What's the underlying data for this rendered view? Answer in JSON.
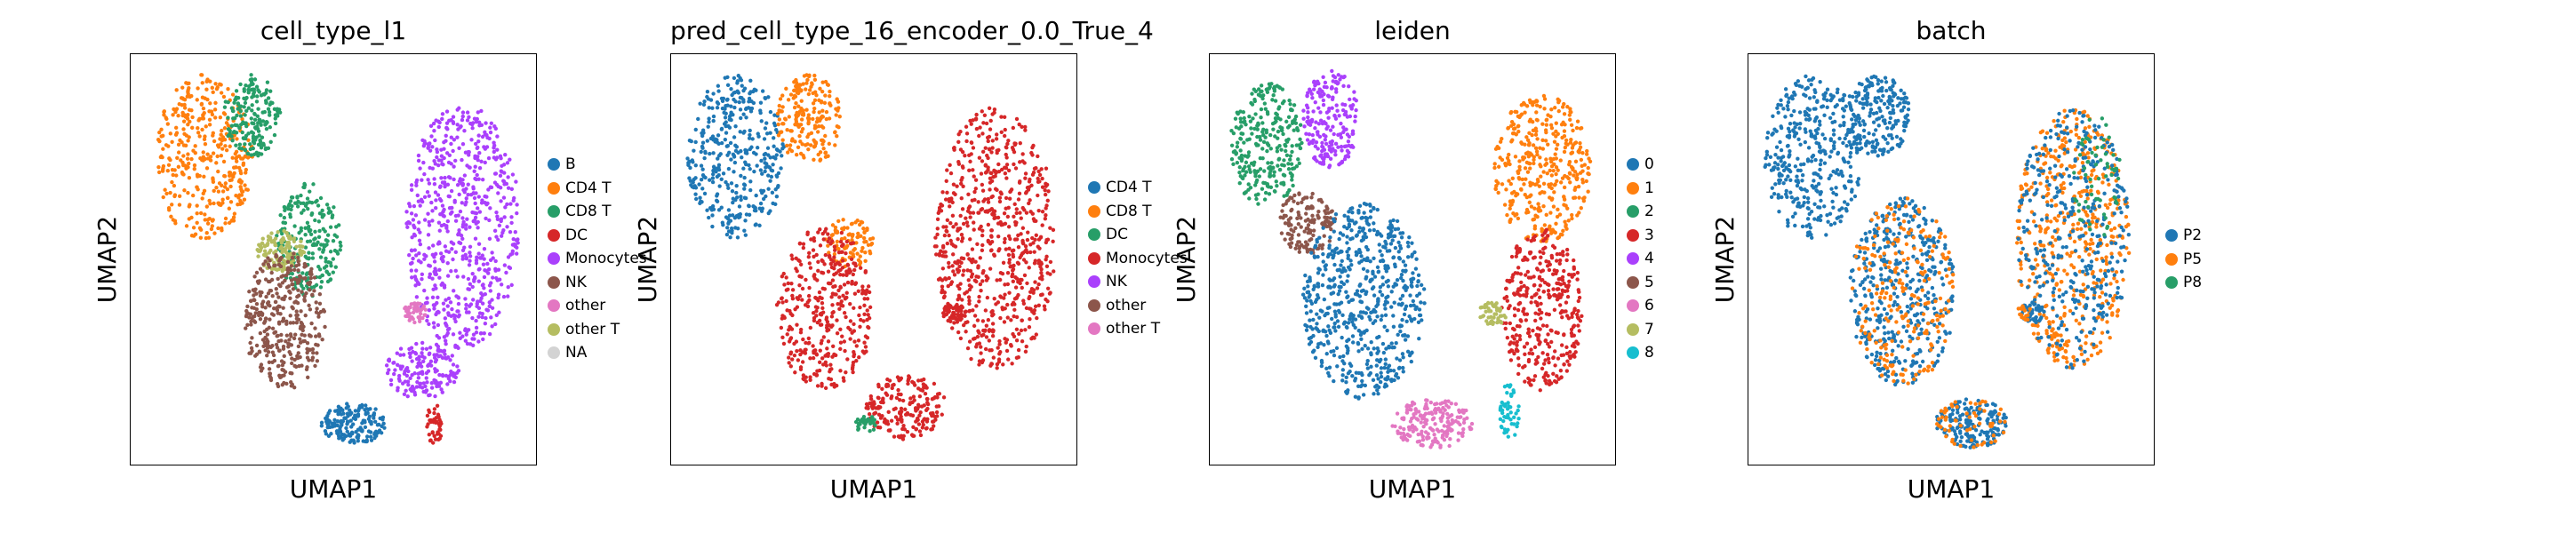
{
  "colors": {
    "blue": "#1f77b4",
    "orange": "#ff7f0e",
    "green": "#279e68",
    "red": "#d62728",
    "purple": "#aa40fc",
    "brown": "#8c564b",
    "pink": "#e377c2",
    "olive": "#b5bd61",
    "gray": "#d3d3d3",
    "cyan": "#17becf"
  },
  "chart_data": [
    {
      "type": "scatter",
      "title": "cell_type_l1",
      "xlabel": "UMAP1",
      "ylabel": "UMAP2",
      "grid": false,
      "legend": "right",
      "legend_entries": [
        {
          "label": "B",
          "color": "#1f77b4"
        },
        {
          "label": "CD4 T",
          "color": "#ff7f0e"
        },
        {
          "label": "CD8 T",
          "color": "#279e68"
        },
        {
          "label": "DC",
          "color": "#d62728"
        },
        {
          "label": "Monocytes",
          "color": "#aa40fc"
        },
        {
          "label": "NK",
          "color": "#8c564b"
        },
        {
          "label": "other",
          "color": "#e377c2"
        },
        {
          "label": "other T",
          "color": "#b5bd61"
        },
        {
          "label": "NA",
          "color": "#d3d3d3"
        }
      ],
      "regions": [
        {
          "color": "#ff7f0e",
          "cx": 0.18,
          "cy": 0.25,
          "rx": 0.12,
          "ry": 0.2,
          "n": 380
        },
        {
          "color": "#279e68",
          "cx": 0.3,
          "cy": 0.15,
          "rx": 0.07,
          "ry": 0.1,
          "n": 180
        },
        {
          "color": "#279e68",
          "cx": 0.44,
          "cy": 0.45,
          "rx": 0.08,
          "ry": 0.14,
          "n": 220
        },
        {
          "color": "#b5bd61",
          "cx": 0.37,
          "cy": 0.48,
          "rx": 0.06,
          "ry": 0.05,
          "n": 120
        },
        {
          "color": "#8c564b",
          "cx": 0.38,
          "cy": 0.65,
          "rx": 0.1,
          "ry": 0.17,
          "n": 360
        },
        {
          "color": "#aa40fc",
          "cx": 0.82,
          "cy": 0.42,
          "rx": 0.14,
          "ry": 0.3,
          "n": 650
        },
        {
          "color": "#aa40fc",
          "cx": 0.72,
          "cy": 0.77,
          "rx": 0.09,
          "ry": 0.07,
          "n": 160
        },
        {
          "color": "#1f77b4",
          "cx": 0.55,
          "cy": 0.9,
          "rx": 0.08,
          "ry": 0.05,
          "n": 170
        },
        {
          "color": "#e377c2",
          "cx": 0.7,
          "cy": 0.63,
          "rx": 0.03,
          "ry": 0.025,
          "n": 50
        },
        {
          "color": "#d62728",
          "cx": 0.75,
          "cy": 0.9,
          "rx": 0.02,
          "ry": 0.05,
          "n": 40
        }
      ]
    },
    {
      "type": "scatter",
      "title": "pred_cell_type_16_encoder_0.0_True_4",
      "xlabel": "UMAP1",
      "ylabel": "UMAP2",
      "grid": false,
      "legend": "right",
      "legend_entries": [
        {
          "label": "CD4 T",
          "color": "#1f77b4"
        },
        {
          "label": "CD8 T",
          "color": "#ff7f0e"
        },
        {
          "label": "DC",
          "color": "#279e68"
        },
        {
          "label": "Monocytes",
          "color": "#d62728"
        },
        {
          "label": "NK",
          "color": "#aa40fc"
        },
        {
          "label": "other",
          "color": "#8c564b"
        },
        {
          "label": "other T",
          "color": "#e377c2"
        }
      ],
      "regions": [
        {
          "color": "#1f77b4",
          "cx": 0.16,
          "cy": 0.25,
          "rx": 0.12,
          "ry": 0.2,
          "n": 380
        },
        {
          "color": "#ff7f0e",
          "cx": 0.34,
          "cy": 0.16,
          "rx": 0.08,
          "ry": 0.11,
          "n": 200
        },
        {
          "color": "#ff7f0e",
          "cx": 0.44,
          "cy": 0.46,
          "rx": 0.06,
          "ry": 0.06,
          "n": 90
        },
        {
          "color": "#d62728",
          "cx": 0.38,
          "cy": 0.62,
          "rx": 0.12,
          "ry": 0.2,
          "n": 380
        },
        {
          "color": "#d62728",
          "cx": 0.8,
          "cy": 0.45,
          "rx": 0.15,
          "ry": 0.32,
          "n": 700
        },
        {
          "color": "#d62728",
          "cx": 0.58,
          "cy": 0.86,
          "rx": 0.1,
          "ry": 0.08,
          "n": 200
        },
        {
          "color": "#d62728",
          "cx": 0.7,
          "cy": 0.63,
          "rx": 0.03,
          "ry": 0.025,
          "n": 50
        },
        {
          "color": "#279e68",
          "cx": 0.48,
          "cy": 0.9,
          "rx": 0.03,
          "ry": 0.02,
          "n": 30
        }
      ]
    },
    {
      "type": "scatter",
      "title": "leiden",
      "xlabel": "UMAP1",
      "ylabel": "UMAP2",
      "grid": false,
      "legend": "right",
      "legend_entries": [
        {
          "label": "0",
          "color": "#1f77b4"
        },
        {
          "label": "1",
          "color": "#ff7f0e"
        },
        {
          "label": "2",
          "color": "#279e68"
        },
        {
          "label": "3",
          "color": "#d62728"
        },
        {
          "label": "4",
          "color": "#aa40fc"
        },
        {
          "label": "5",
          "color": "#8c564b"
        },
        {
          "label": "6",
          "color": "#e377c2"
        },
        {
          "label": "7",
          "color": "#b5bd61"
        },
        {
          "label": "8",
          "color": "#17becf"
        }
      ],
      "regions": [
        {
          "color": "#279e68",
          "cx": 0.14,
          "cy": 0.22,
          "rx": 0.09,
          "ry": 0.15,
          "n": 280
        },
        {
          "color": "#aa40fc",
          "cx": 0.3,
          "cy": 0.16,
          "rx": 0.07,
          "ry": 0.12,
          "n": 200
        },
        {
          "color": "#8c564b",
          "cx": 0.24,
          "cy": 0.41,
          "rx": 0.07,
          "ry": 0.08,
          "n": 140
        },
        {
          "color": "#1f77b4",
          "cx": 0.38,
          "cy": 0.6,
          "rx": 0.15,
          "ry": 0.24,
          "n": 620
        },
        {
          "color": "#ff7f0e",
          "cx": 0.82,
          "cy": 0.28,
          "rx": 0.12,
          "ry": 0.18,
          "n": 380
        },
        {
          "color": "#d62728",
          "cx": 0.82,
          "cy": 0.62,
          "rx": 0.1,
          "ry": 0.2,
          "n": 360
        },
        {
          "color": "#e377c2",
          "cx": 0.55,
          "cy": 0.9,
          "rx": 0.1,
          "ry": 0.06,
          "n": 200
        },
        {
          "color": "#b5bd61",
          "cx": 0.7,
          "cy": 0.63,
          "rx": 0.035,
          "ry": 0.03,
          "n": 50
        },
        {
          "color": "#17becf",
          "cx": 0.74,
          "cy": 0.87,
          "rx": 0.025,
          "ry": 0.07,
          "n": 50
        }
      ]
    },
    {
      "type": "scatter",
      "title": "batch",
      "xlabel": "UMAP1",
      "ylabel": "UMAP2",
      "grid": false,
      "legend": "right",
      "legend_entries": [
        {
          "label": "P2",
          "color": "#1f77b4"
        },
        {
          "label": "P5",
          "color": "#ff7f0e"
        },
        {
          "label": "P8",
          "color": "#279e68"
        }
      ],
      "regions": [
        {
          "color": "#1f77b4",
          "cx": 0.16,
          "cy": 0.25,
          "rx": 0.12,
          "ry": 0.2,
          "n": 380
        },
        {
          "color": "#1f77b4",
          "cx": 0.32,
          "cy": 0.15,
          "rx": 0.08,
          "ry": 0.1,
          "n": 200
        },
        {
          "color": "#1f77b4",
          "cx": 0.38,
          "cy": 0.58,
          "rx": 0.13,
          "ry": 0.23,
          "n": 420
        },
        {
          "color": "#ff7f0e",
          "cx": 0.38,
          "cy": 0.58,
          "rx": 0.13,
          "ry": 0.23,
          "n": 220
        },
        {
          "color": "#ff7f0e",
          "cx": 0.8,
          "cy": 0.45,
          "rx": 0.14,
          "ry": 0.32,
          "n": 480
        },
        {
          "color": "#1f77b4",
          "cx": 0.8,
          "cy": 0.45,
          "rx": 0.14,
          "ry": 0.32,
          "n": 360
        },
        {
          "color": "#279e68",
          "cx": 0.86,
          "cy": 0.3,
          "rx": 0.06,
          "ry": 0.15,
          "n": 60
        },
        {
          "color": "#1f77b4",
          "cx": 0.55,
          "cy": 0.9,
          "rx": 0.09,
          "ry": 0.06,
          "n": 170
        },
        {
          "color": "#ff7f0e",
          "cx": 0.55,
          "cy": 0.9,
          "rx": 0.09,
          "ry": 0.06,
          "n": 60
        },
        {
          "color": "#1f77b4",
          "cx": 0.7,
          "cy": 0.63,
          "rx": 0.03,
          "ry": 0.025,
          "n": 40
        },
        {
          "color": "#ff7f0e",
          "cx": 0.68,
          "cy": 0.63,
          "rx": 0.02,
          "ry": 0.02,
          "n": 15
        }
      ]
    }
  ]
}
